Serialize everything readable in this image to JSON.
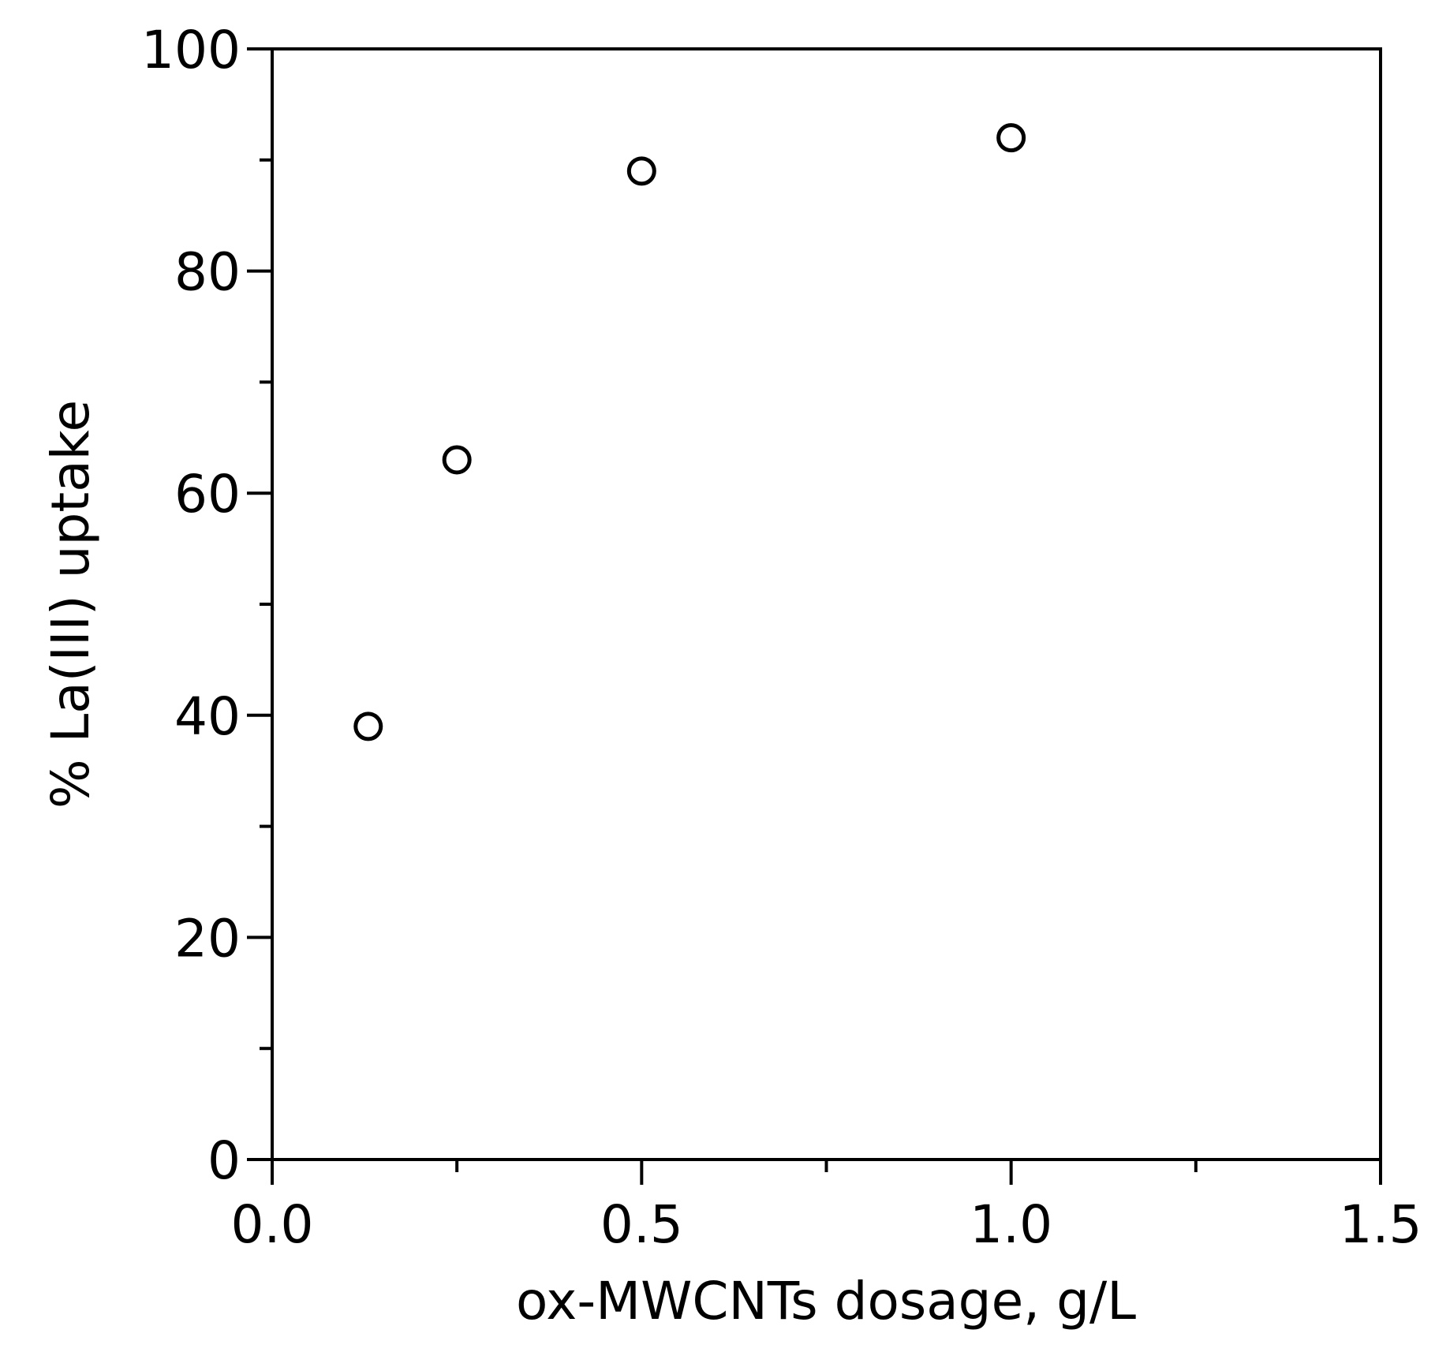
{
  "chart_data": {
    "type": "scatter",
    "title": "",
    "xlabel": "ox-MWCNTs dosage, g/L",
    "ylabel": "% La(III) uptake",
    "xlim": [
      0.0,
      1.5
    ],
    "ylim": [
      0,
      100
    ],
    "x_major_ticks": [
      0.0,
      0.5,
      1.0,
      1.5
    ],
    "x_tick_labels": [
      "0.0",
      "0.5",
      "1.0",
      "1.5"
    ],
    "x_minor_ticks": [
      0.25,
      0.75,
      1.25
    ],
    "y_major_ticks": [
      0,
      20,
      40,
      60,
      80,
      100
    ],
    "y_tick_labels": [
      "0",
      "20",
      "40",
      "60",
      "80",
      "100"
    ],
    "y_minor_ticks": [
      10,
      30,
      50,
      70,
      90
    ],
    "grid": false,
    "marker": "open-circle",
    "color": "#000000",
    "series": [
      {
        "x": [
          0.13,
          0.25,
          0.5,
          1.0
        ],
        "y": [
          39,
          63,
          89,
          92
        ]
      }
    ]
  }
}
